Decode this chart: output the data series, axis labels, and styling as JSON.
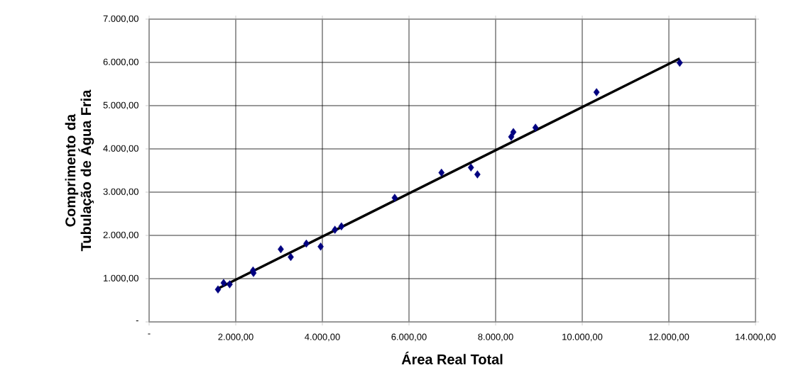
{
  "chart_data": {
    "type": "scatter",
    "xlabel": "Área Real Total",
    "ylabel": "Comprimento da Tubulação de Água Fria",
    "xlim": [
      0,
      14000
    ],
    "ylim": [
      0,
      7000
    ],
    "xticks": [
      {
        "value": 0,
        "label": "-"
      },
      {
        "value": 2000,
        "label": "2.000,00"
      },
      {
        "value": 4000,
        "label": "4.000,00"
      },
      {
        "value": 6000,
        "label": "6.000,00"
      },
      {
        "value": 8000,
        "label": "8.000,00"
      },
      {
        "value": 10000,
        "label": "10.000,00"
      },
      {
        "value": 12000,
        "label": "12.000,00"
      },
      {
        "value": 14000,
        "label": "14.000,00"
      }
    ],
    "yticks": [
      {
        "value": 0,
        "label": "-"
      },
      {
        "value": 1000,
        "label": "1.000,00"
      },
      {
        "value": 2000,
        "label": "2.000,00"
      },
      {
        "value": 3000,
        "label": "3.000,00"
      },
      {
        "value": 4000,
        "label": "4.000,00"
      },
      {
        "value": 5000,
        "label": "5.000,00"
      },
      {
        "value": 6000,
        "label": "6.000,00"
      },
      {
        "value": 7000,
        "label": "7.000,00"
      }
    ],
    "grid": true,
    "marker": "diamond",
    "series": [
      {
        "type": "scatter",
        "color": "#000080",
        "x": [
          1590,
          1720,
          1860,
          2400,
          2410,
          3040,
          3270,
          3630,
          3960,
          4290,
          4440,
          5670,
          6750,
          7430,
          7580,
          8360,
          8410,
          8920,
          10330,
          12250
        ],
        "values": [
          750,
          900,
          870,
          1190,
          1130,
          1680,
          1500,
          1810,
          1740,
          2130,
          2210,
          2870,
          3450,
          3570,
          3410,
          4280,
          4390,
          4490,
          5310,
          5990
        ]
      },
      {
        "type": "line",
        "color": "#000000",
        "marker": "none",
        "line_style": "solid",
        "x": [
          1590,
          12250
        ],
        "values": [
          770,
          6090
        ]
      }
    ]
  }
}
